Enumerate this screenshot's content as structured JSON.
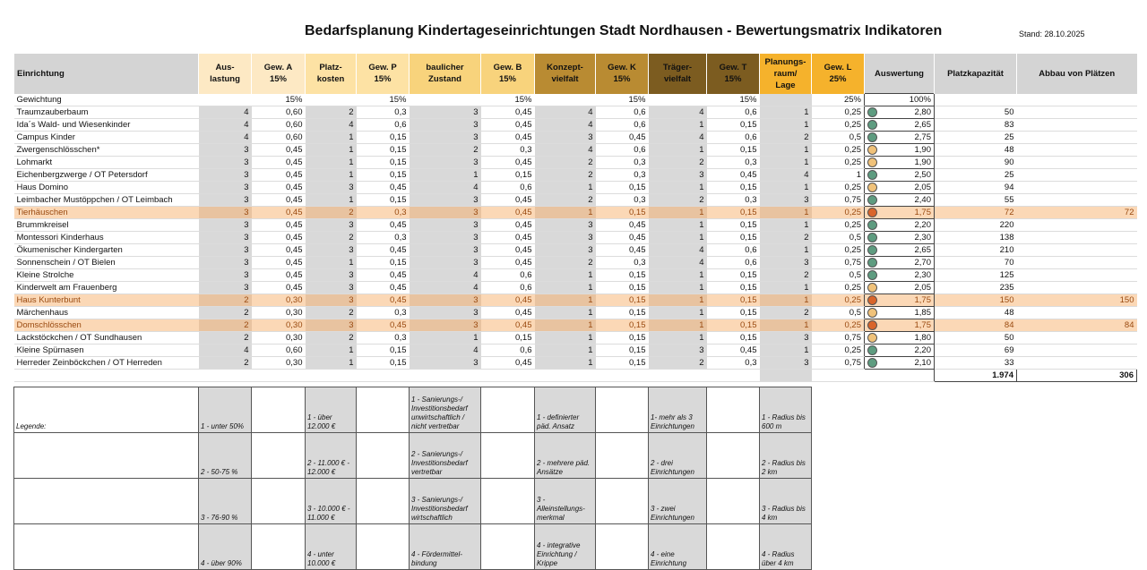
{
  "header": {
    "title": "Bedarfsplanung Kindertageseinrichtungen Stadt Nordhausen - Bewertungsmatrix Indikatoren",
    "stand": "Stand: 28.10.2025"
  },
  "table": {
    "columns": [
      "Einrichtung",
      "Aus-\nlastung",
      "Gew. A\n15%",
      "Platz-\nkosten",
      "Gew. P\n15%",
      "baulicher\nZustand",
      "Gew. B\n15%",
      "Konzept-\nvielfalt",
      "Gew. K\n15%",
      "Träger-\nvielfalt",
      "Gew. T\n15%",
      "Planungs-\nraum/\nLage",
      "Gew. L\n25%",
      "Auswertung",
      "Platzkapazität",
      "Abbau von Plätzen"
    ],
    "column_colors": [
      "#d4d4d4",
      "#fde9c4",
      "#fde9c4",
      "#fde2a4",
      "#fde2a4",
      "#f8d37c",
      "#f8d37c",
      "#b98b32",
      "#b98b32",
      "#7c5c20",
      "#7c5c20",
      "#f5b22c",
      "#f5b22c",
      "#d4d4d4",
      "#d4d4d4",
      "#d4d4d4"
    ],
    "weights_row": {
      "label": "Gewichtung",
      "weights": [
        "15%",
        "15%",
        "15%",
        "15%",
        "15%",
        "25%"
      ],
      "total": "100%"
    },
    "rows": [
      {
        "name": "Traumzauberbaum",
        "cells": [
          "4",
          "0,60",
          "2",
          "0,3",
          "3",
          "0,45",
          "4",
          "0,6",
          "4",
          "0,6",
          "1",
          "0,25"
        ],
        "dot": "#5e9c80",
        "score": "2,80",
        "capacity": "50"
      },
      {
        "name": "Ida´s Wald- und Wiesenkinder",
        "cells": [
          "4",
          "0,60",
          "4",
          "0,6",
          "3",
          "0,45",
          "4",
          "0,6",
          "1",
          "0,15",
          "1",
          "0,25"
        ],
        "dot": "#5e9c80",
        "score": "2,65",
        "capacity": "83"
      },
      {
        "name": "Campus Kinder",
        "cells": [
          "4",
          "0,60",
          "1",
          "0,15",
          "3",
          "0,45",
          "3",
          "0,45",
          "4",
          "0,6",
          "2",
          "0,5"
        ],
        "dot": "#5e9c80",
        "score": "2,75",
        "capacity": "25"
      },
      {
        "name": "Zwergenschlösschen*",
        "cells": [
          "3",
          "0,45",
          "1",
          "0,15",
          "2",
          "0,3",
          "4",
          "0,6",
          "1",
          "0,15",
          "1",
          "0,25"
        ],
        "dot": "#f0c27a",
        "score": "1,90",
        "capacity": "48"
      },
      {
        "name": "Lohmarkt",
        "cells": [
          "3",
          "0,45",
          "1",
          "0,15",
          "3",
          "0,45",
          "2",
          "0,3",
          "2",
          "0,3",
          "1",
          "0,25"
        ],
        "dot": "#f0c27a",
        "score": "1,90",
        "capacity": "90"
      },
      {
        "name": "Eichenbergzwerge / OT Petersdorf",
        "cells": [
          "3",
          "0,45",
          "1",
          "0,15",
          "1",
          "0,15",
          "2",
          "0,3",
          "3",
          "0,45",
          "4",
          "1"
        ],
        "dot": "#5e9c80",
        "score": "2,50",
        "capacity": "25"
      },
      {
        "name": "Haus Domino",
        "cells": [
          "3",
          "0,45",
          "3",
          "0,45",
          "4",
          "0,6",
          "1",
          "0,15",
          "1",
          "0,15",
          "1",
          "0,25"
        ],
        "dot": "#f0c27a",
        "score": "2,05",
        "capacity": "94"
      },
      {
        "name": "Leimbacher Mustöppchen / OT Leimbach",
        "cells": [
          "3",
          "0,45",
          "1",
          "0,15",
          "3",
          "0,45",
          "2",
          "0,3",
          "2",
          "0,3",
          "3",
          "0,75"
        ],
        "dot": "#5e9c80",
        "score": "2,40",
        "capacity": "55"
      },
      {
        "name": "Tierhäuschen",
        "cells": [
          "3",
          "0,45",
          "2",
          "0,3",
          "3",
          "0,45",
          "1",
          "0,15",
          "1",
          "0,15",
          "1",
          "0,25"
        ],
        "dot": "#d9652b",
        "score": "1,75",
        "capacity": "72",
        "reduction": "72",
        "highlight": true
      },
      {
        "name": "Brummkreisel",
        "cells": [
          "3",
          "0,45",
          "3",
          "0,45",
          "3",
          "0,45",
          "3",
          "0,45",
          "1",
          "0,15",
          "1",
          "0,25"
        ],
        "dot": "#5e9c80",
        "score": "2,20",
        "capacity": "220"
      },
      {
        "name": "Montessori Kinderhaus",
        "cells": [
          "3",
          "0,45",
          "2",
          "0,3",
          "3",
          "0,45",
          "3",
          "0,45",
          "1",
          "0,15",
          "2",
          "0,5"
        ],
        "dot": "#5e9c80",
        "score": "2,30",
        "capacity": "138"
      },
      {
        "name": "Ökumenischer Kindergarten",
        "cells": [
          "3",
          "0,45",
          "3",
          "0,45",
          "3",
          "0,45",
          "3",
          "0,45",
          "4",
          "0,6",
          "1",
          "0,25"
        ],
        "dot": "#5e9c80",
        "score": "2,65",
        "capacity": "210"
      },
      {
        "name": "Sonnenschein / OT Bielen",
        "cells": [
          "3",
          "0,45",
          "1",
          "0,15",
          "3",
          "0,45",
          "2",
          "0,3",
          "4",
          "0,6",
          "3",
          "0,75"
        ],
        "dot": "#5e9c80",
        "score": "2,70",
        "capacity": "70"
      },
      {
        "name": "Kleine Strolche",
        "cells": [
          "3",
          "0,45",
          "3",
          "0,45",
          "4",
          "0,6",
          "1",
          "0,15",
          "1",
          "0,15",
          "2",
          "0,5"
        ],
        "dot": "#5e9c80",
        "score": "2,30",
        "capacity": "125"
      },
      {
        "name": "Kinderwelt am Frauenberg",
        "cells": [
          "3",
          "0,45",
          "3",
          "0,45",
          "4",
          "0,6",
          "1",
          "0,15",
          "1",
          "0,15",
          "1",
          "0,25"
        ],
        "dot": "#f0c27a",
        "score": "2,05",
        "capacity": "235"
      },
      {
        "name": "Haus Kunterbunt",
        "cells": [
          "2",
          "0,30",
          "3",
          "0,45",
          "3",
          "0,45",
          "1",
          "0,15",
          "1",
          "0,15",
          "1",
          "0,25"
        ],
        "dot": "#d9652b",
        "score": "1,75",
        "capacity": "150",
        "reduction": "150",
        "highlight": true
      },
      {
        "name": "Märchenhaus",
        "cells": [
          "2",
          "0,30",
          "2",
          "0,3",
          "3",
          "0,45",
          "1",
          "0,15",
          "1",
          "0,15",
          "2",
          "0,5"
        ],
        "dot": "#f0c27a",
        "score": "1,85",
        "capacity": "48"
      },
      {
        "name": "Domschlösschen",
        "cells": [
          "2",
          "0,30",
          "3",
          "0,45",
          "3",
          "0,45",
          "1",
          "0,15",
          "1",
          "0,15",
          "1",
          "0,25"
        ],
        "dot": "#d9652b",
        "score": "1,75",
        "capacity": "84",
        "reduction": "84",
        "highlight": true
      },
      {
        "name": "Lackstöckchen / OT Sundhausen",
        "cells": [
          "2",
          "0,30",
          "2",
          "0,3",
          "1",
          "0,15",
          "1",
          "0,15",
          "1",
          "0,15",
          "3",
          "0,75"
        ],
        "dot": "#f0c27a",
        "score": "1,80",
        "capacity": "50"
      },
      {
        "name": "Kleine Spürnasen",
        "cells": [
          "4",
          "0,60",
          "1",
          "0,15",
          "4",
          "0,6",
          "1",
          "0,15",
          "3",
          "0,45",
          "1",
          "0,25"
        ],
        "dot": "#5e9c80",
        "score": "2,20",
        "capacity": "69"
      },
      {
        "name": "Herreder Zeinböckchen / OT Herreden",
        "cells": [
          "2",
          "0,30",
          "1",
          "0,15",
          "3",
          "0,45",
          "1",
          "0,15",
          "2",
          "0,3",
          "3",
          "0,75"
        ],
        "dot": "#5e9c80",
        "score": "2,10",
        "capacity": "33"
      }
    ],
    "totals": {
      "capacity": "1.974",
      "reduction": "306"
    }
  },
  "legend": {
    "title": "Legende:",
    "columns": [
      [
        "1 - unter 50%",
        "2 - 50-75 %",
        "3 - 76-90 %",
        "4 - über 90%"
      ],
      [
        "1 - über 12.000 €",
        "2 - 11.000 € - 12.000 €",
        "3 - 10.000 € - 11.000 €",
        "4 - unter 10.000 €"
      ],
      [
        "1 - Sanierungs-/ Investitionsbedarf unwirtschaftlich / nicht vertretbar",
        "2 - Sanierungs-/ Investitionsbedarf vertretbar",
        "3 - Sanierungs-/ Investitionsbedarf wirtschaftlich",
        "4 - Fördermittel-bindung"
      ],
      [
        "1 - definierter päd. Ansatz",
        "2 - mehrere päd. Ansätze",
        "3 - Alleinstellungs-merkmal",
        "4 - integrative Einrichtung / Krippe"
      ],
      [
        "1- mehr als 3 Einrichtungen",
        "2 - drei Einrichtungen",
        "3 - zwei Einrichtungen",
        "4 - eine Einrichtung"
      ],
      [
        "1 - Radius bis 600 m",
        "2 - Radius bis 2 km",
        "3 - Radius bis 4 km",
        "4 - Radius über 4 km"
      ]
    ]
  }
}
